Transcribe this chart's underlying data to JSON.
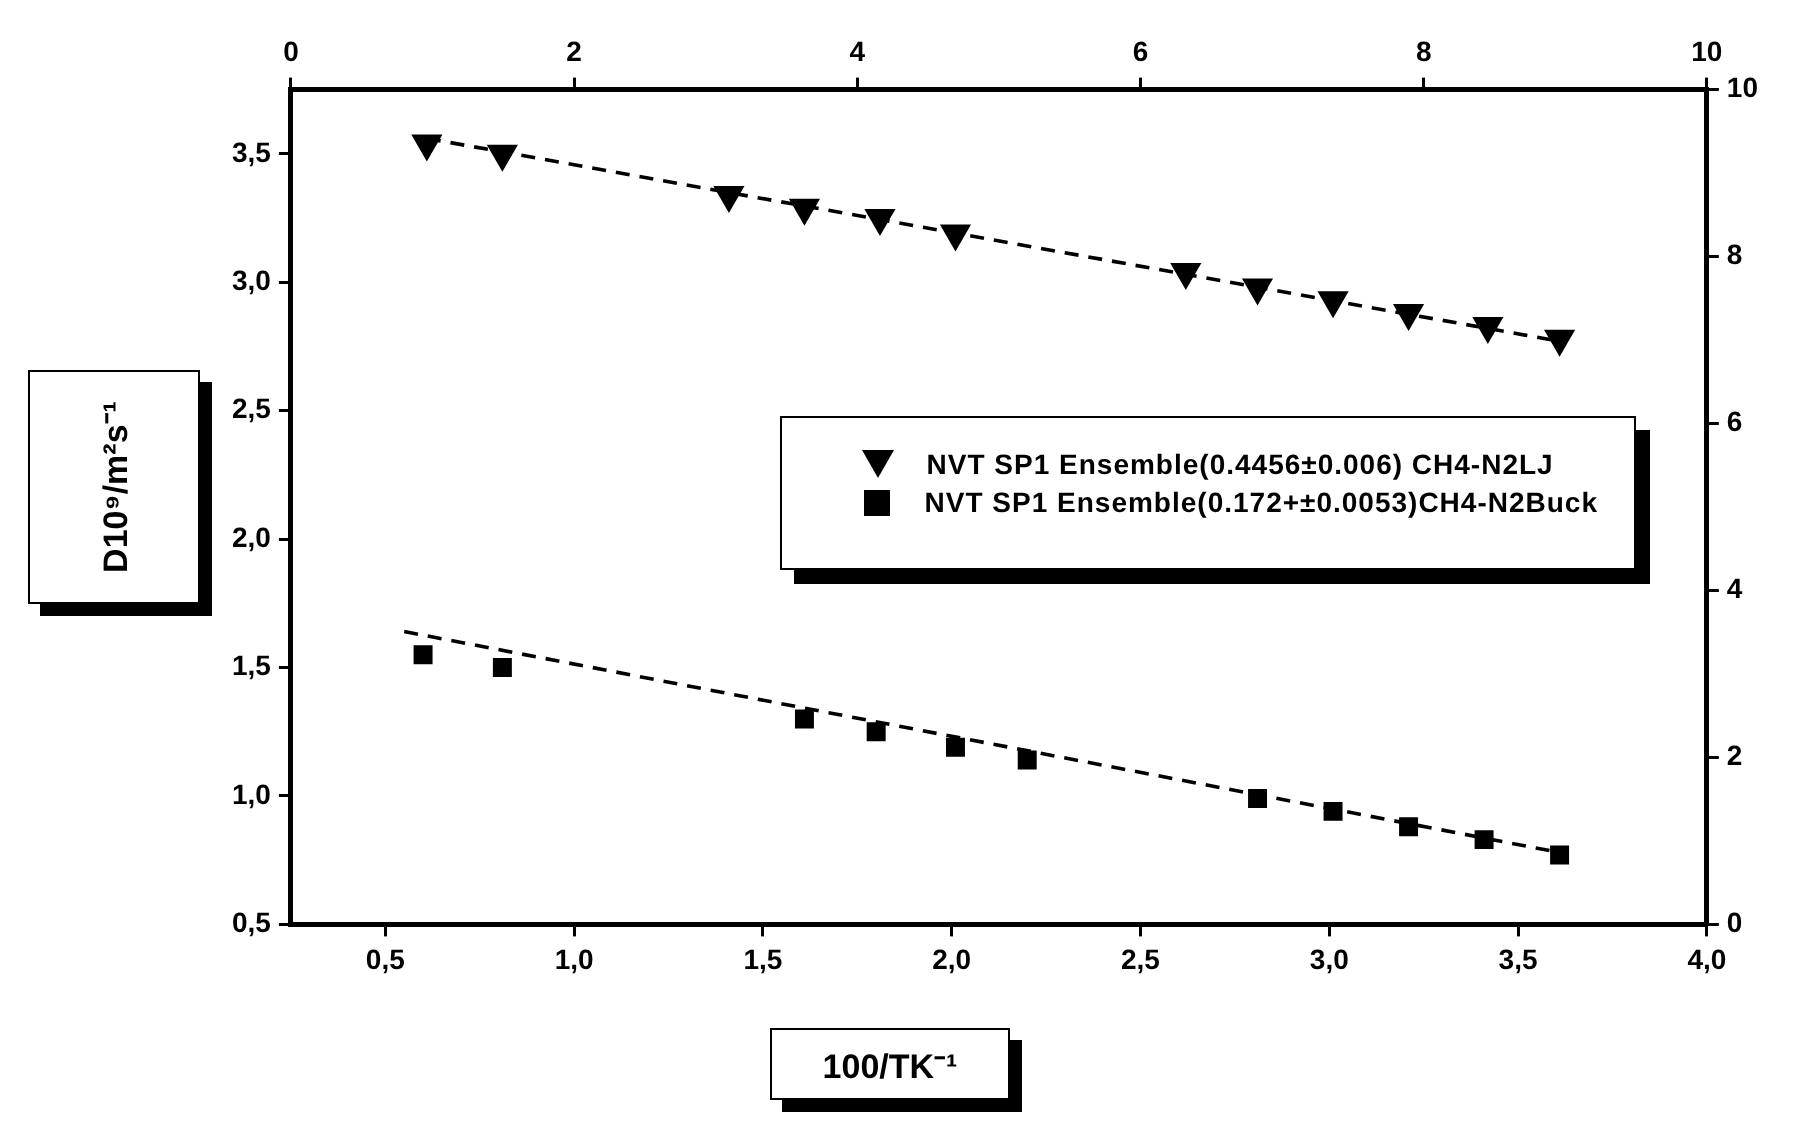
{
  "chart_data": {
    "type": "scatter",
    "xlabel": "100/TK⁻¹",
    "ylabel": "D10⁹/m²s⁻¹",
    "xlim": [
      0.25,
      4
    ],
    "xticks": [
      {
        "value": 0.5,
        "label": "0,5"
      },
      {
        "value": 1,
        "label": "1,0"
      },
      {
        "value": 1.5,
        "label": "1,5"
      },
      {
        "value": 2,
        "label": "2,0"
      },
      {
        "value": 2.5,
        "label": "2,5"
      },
      {
        "value": 3,
        "label": "3,0"
      },
      {
        "value": 3.5,
        "label": "3,5"
      },
      {
        "value": 4,
        "label": "4,0"
      }
    ],
    "ylim": [
      0.5,
      3.75
    ],
    "yticks": [
      {
        "value": 0.5,
        "label": "0,5"
      },
      {
        "value": 1,
        "label": "1,0"
      },
      {
        "value": 1.5,
        "label": "1,5"
      },
      {
        "value": 2,
        "label": "2,0"
      },
      {
        "value": 2.5,
        "label": "2,5"
      },
      {
        "value": 3,
        "label": "3,0"
      },
      {
        "value": 3.5,
        "label": "3,5"
      }
    ],
    "x2lim": [
      0,
      10
    ],
    "x2ticks": [
      0,
      2,
      4,
      6,
      8,
      10
    ],
    "y2lim": [
      0,
      10
    ],
    "y2ticks": [
      0,
      2,
      4,
      6,
      8,
      10
    ],
    "grid": false,
    "legend": "right",
    "series": [
      {
        "name": "NVT SP1 Ensemble(0.4456±0.006)  CH4-N2LJ",
        "color": "#000000",
        "marker": "triangle",
        "x": [
          0.61,
          0.81,
          1.41,
          1.61,
          1.81,
          2.01,
          2.62,
          2.81,
          3.01,
          3.21,
          3.42,
          3.61
        ],
        "values": [
          3.54,
          3.5,
          3.34,
          3.29,
          3.25,
          3.19,
          3.04,
          2.98,
          2.93,
          2.88,
          2.83,
          2.78
        ]
      },
      {
        "name": "NVT SP1 Ensemble(0.172+±0.0053)CH4-N2Buck",
        "color": "#000000",
        "marker": "square",
        "x": [
          0.6,
          0.81,
          1.61,
          1.8,
          2.01,
          2.2,
          2.81,
          3.01,
          3.21,
          3.41,
          3.61
        ],
        "values": [
          1.55,
          1.5,
          1.3,
          1.25,
          1.19,
          1.14,
          0.99,
          0.94,
          0.88,
          0.83,
          0.77
        ]
      },
      {
        "type": "line",
        "color": "#000000",
        "line_style": "dashed",
        "marker": "none",
        "x": [
          0.61,
          3.61
        ],
        "values": [
          3.56,
          2.77
        ]
      },
      {
        "type": "line",
        "color": "#000000",
        "line_style": "dashed",
        "marker": "none",
        "x": [
          0.55,
          3.61
        ],
        "values": [
          1.64,
          0.78
        ]
      }
    ]
  }
}
